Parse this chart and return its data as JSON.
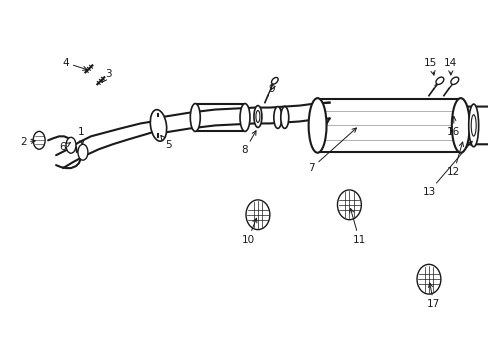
{
  "background_color": "#ffffff",
  "line_color": "#1a1a1a",
  "fig_width": 4.89,
  "fig_height": 3.6,
  "dpi": 100,
  "arrow_label_fontsize": 7.5
}
